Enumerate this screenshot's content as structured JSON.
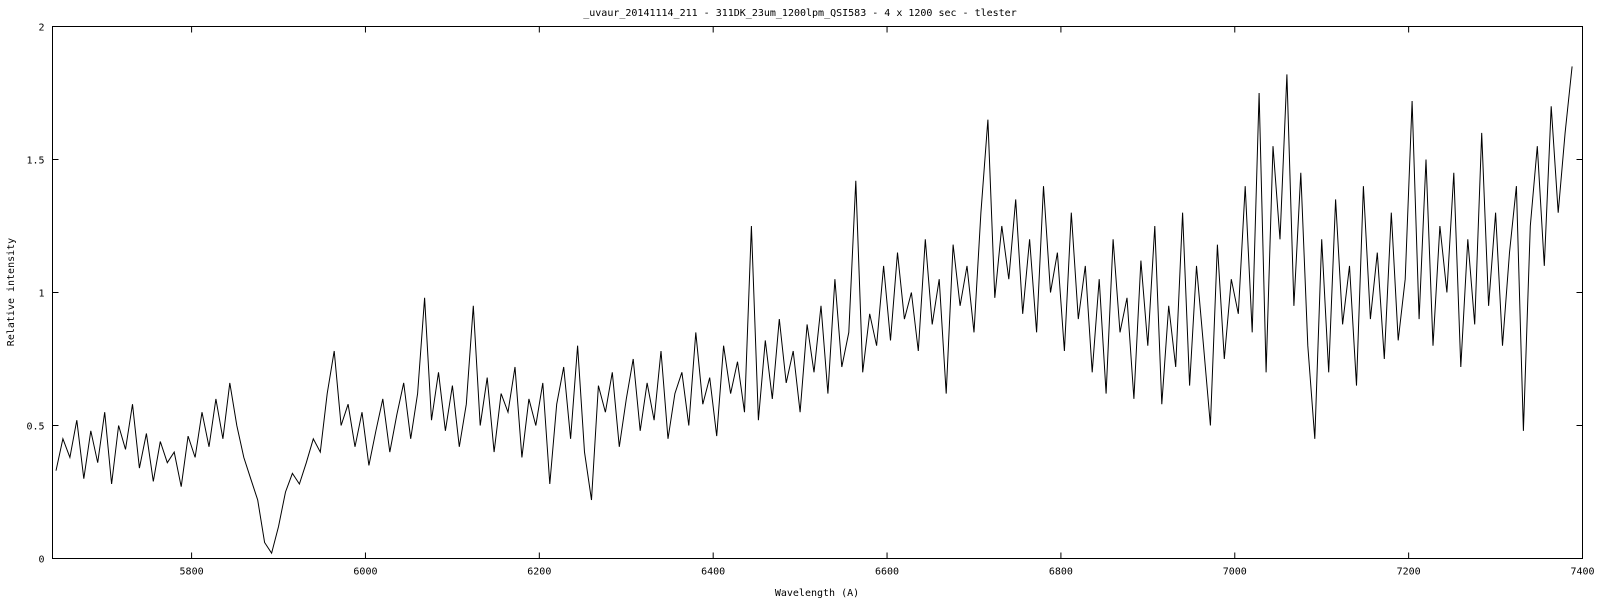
{
  "chart_data": {
    "type": "line",
    "title": "_uvaur_20141114_211 - 311DK_23um_1200lpm_QSI583 - 4 x 1200 sec -  tlester",
    "xlabel": "Wavelength (A)",
    "ylabel": "Relative intensity",
    "xlim": [
      5640,
      7400
    ],
    "ylim": [
      0,
      2
    ],
    "xticks": [
      "5800",
      "6000",
      "6200",
      "6400",
      "6600",
      "6800",
      "7000",
      "7200",
      "7400"
    ],
    "yticks": [
      "0",
      "0.5",
      "1",
      "1.5",
      "2"
    ],
    "grid": false,
    "line_color": "#000000",
    "series": [
      {
        "x_start": 5644,
        "x_step": 8,
        "y": [
          0.33,
          0.45,
          0.38,
          0.52,
          0.3,
          0.48,
          0.36,
          0.55,
          0.28,
          0.5,
          0.41,
          0.58,
          0.34,
          0.47,
          0.29,
          0.44,
          0.36,
          0.4,
          0.27,
          0.46,
          0.38,
          0.55,
          0.42,
          0.6,
          0.45,
          0.66,
          0.5,
          0.38,
          0.3,
          0.22,
          0.06,
          0.02,
          0.12,
          0.25,
          0.32,
          0.28,
          0.36,
          0.45,
          0.4,
          0.62,
          0.78,
          0.5,
          0.58,
          0.42,
          0.55,
          0.35,
          0.48,
          0.6,
          0.4,
          0.54,
          0.66,
          0.45,
          0.62,
          0.98,
          0.52,
          0.7,
          0.48,
          0.65,
          0.42,
          0.58,
          0.95,
          0.5,
          0.68,
          0.4,
          0.62,
          0.55,
          0.72,
          0.38,
          0.6,
          0.5,
          0.66,
          0.28,
          0.58,
          0.72,
          0.45,
          0.8,
          0.4,
          0.22,
          0.65,
          0.55,
          0.7,
          0.42,
          0.6,
          0.75,
          0.48,
          0.66,
          0.52,
          0.78,
          0.45,
          0.62,
          0.7,
          0.5,
          0.85,
          0.58,
          0.68,
          0.46,
          0.8,
          0.62,
          0.74,
          0.55,
          1.25,
          0.52,
          0.82,
          0.6,
          0.9,
          0.66,
          0.78,
          0.55,
          0.88,
          0.7,
          0.95,
          0.62,
          1.05,
          0.72,
          0.85,
          1.42,
          0.7,
          0.92,
          0.8,
          1.1,
          0.82,
          1.15,
          0.9,
          1.0,
          0.78,
          1.2,
          0.88,
          1.05,
          0.62,
          1.18,
          0.95,
          1.1,
          0.85,
          1.3,
          1.65,
          0.98,
          1.25,
          1.05,
          1.35,
          0.92,
          1.2,
          0.85,
          1.4,
          1.0,
          1.15,
          0.78,
          1.3,
          0.9,
          1.1,
          0.7,
          1.05,
          0.62,
          1.2,
          0.85,
          0.98,
          0.6,
          1.12,
          0.8,
          1.25,
          0.58,
          0.95,
          0.72,
          1.3,
          0.65,
          1.1,
          0.8,
          0.5,
          1.18,
          0.75,
          1.05,
          0.92,
          1.4,
          0.85,
          1.75,
          0.7,
          1.55,
          1.2,
          1.82,
          0.95,
          1.45,
          0.8,
          0.45,
          1.2,
          0.7,
          1.35,
          0.88,
          1.1,
          0.65,
          1.4,
          0.9,
          1.15,
          0.75,
          1.3,
          0.82,
          1.05,
          1.72,
          0.9,
          1.5,
          0.8,
          1.25,
          1.0,
          1.45,
          0.72,
          1.2,
          0.88,
          1.6,
          0.95,
          1.3,
          0.8,
          1.15,
          1.4,
          0.48,
          1.25,
          1.55,
          1.1,
          1.7,
          1.3,
          1.6,
          1.85
        ]
      }
    ]
  }
}
